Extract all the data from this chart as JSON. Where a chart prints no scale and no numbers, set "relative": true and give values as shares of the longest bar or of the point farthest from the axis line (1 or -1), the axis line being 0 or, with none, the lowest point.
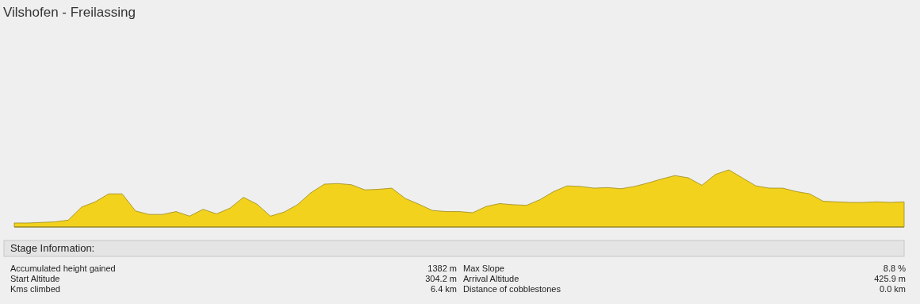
{
  "chart_data": [
    {
      "type": "area",
      "title": "Vilshofen - Freilassing",
      "relative": true,
      "color": "#f2d21c",
      "categories": [
        null,
        null,
        null,
        null,
        null,
        null,
        null,
        null,
        null,
        null,
        null,
        null,
        null,
        null,
        null,
        null,
        null,
        null,
        null,
        null,
        null,
        null,
        null,
        null,
        null,
        null,
        null,
        null,
        null,
        null,
        null,
        null,
        null,
        null,
        null,
        null,
        null,
        null,
        null,
        null,
        null,
        null,
        null,
        null,
        null,
        null,
        null,
        null,
        null,
        null,
        null,
        null,
        null,
        null,
        null,
        null,
        null,
        null,
        null,
        null,
        null,
        null,
        null,
        null,
        null,
        null,
        null
      ],
      "values": [
        0.07,
        0.07,
        0.08,
        0.09,
        0.12,
        0.35,
        0.44,
        0.58,
        0.58,
        0.28,
        0.22,
        0.22,
        0.27,
        0.19,
        0.31,
        0.23,
        0.33,
        0.52,
        0.4,
        0.19,
        0.26,
        0.39,
        0.6,
        0.75,
        0.76,
        0.74,
        0.65,
        0.66,
        0.68,
        0.5,
        0.4,
        0.29,
        0.27,
        0.27,
        0.25,
        0.36,
        0.41,
        0.39,
        0.38,
        0.48,
        0.62,
        0.72,
        0.71,
        0.68,
        0.69,
        0.67,
        0.71,
        0.77,
        0.84,
        0.9,
        0.86,
        0.73,
        0.92,
        1,
        0.86,
        0.72,
        0.68,
        0.68,
        0.62,
        0.58,
        0.45,
        0.44,
        0.43,
        0.43,
        0.44,
        0.43,
        0.44
      ]
    },
    {
      "type": "other",
      "title": "Stage Information:",
      "annotations": [
        "Accumulated height gained",
        "1382 m",
        "Max Slope",
        "8.8 %",
        "Start Altitude",
        "304.2 m",
        "Arrival Altitude",
        "425.9 m",
        "Kms climbed",
        "6.4 km",
        "Distance of cobblestones",
        "0.0 km"
      ]
    }
  ]
}
